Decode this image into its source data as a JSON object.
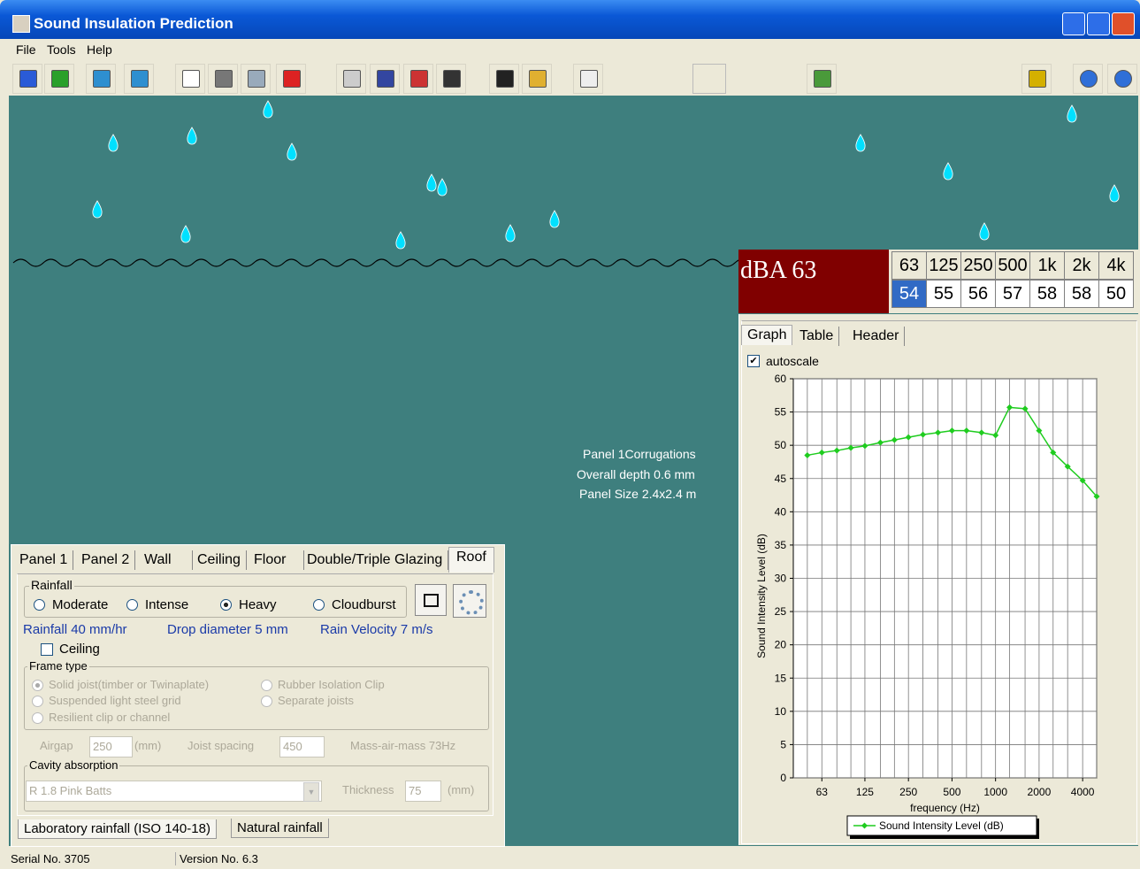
{
  "window": {
    "title": "Sound Insulation Prediction"
  },
  "menu": [
    "File",
    "Tools",
    "Help"
  ],
  "canvas_notes": [
    "Panel 1Corrugations",
    "Overall depth 0.6 mm",
    "Panel Size 2.4x2.4 m"
  ],
  "level_display": {
    "label": "dBA 63",
    "bands": [
      "63",
      "125",
      "250",
      "500",
      "1k",
      "2k",
      "4k"
    ],
    "values": [
      54,
      55,
      56,
      57,
      58,
      58,
      50
    ]
  },
  "result_tabs": [
    "Graph",
    "Table",
    "Header"
  ],
  "autoscale": "autoscale",
  "chart_data": {
    "type": "line",
    "ylabel": "Sound Intensity Level (dB)",
    "xlabel": "frequency (Hz)",
    "x": [
      50,
      63,
      80,
      100,
      125,
      160,
      200,
      250,
      315,
      400,
      500,
      630,
      800,
      1000,
      1250,
      1600,
      2000,
      2500,
      3150,
      4000,
      5000
    ],
    "series": [
      {
        "name": "Sound Intensity Level (dB)",
        "color": "#1fcc1f",
        "values": [
          48.5,
          48.9,
          49.2,
          49.6,
          49.9,
          50.4,
          50.8,
          51.2,
          51.6,
          51.9,
          52.2,
          52.2,
          51.9,
          51.5,
          55.7,
          55.5,
          52.2,
          48.9,
          46.8,
          44.7,
          42.3
        ]
      }
    ],
    "xlim": [
      40,
      5000
    ],
    "ylim": [
      0,
      60
    ],
    "xscale": "log",
    "xticks": [
      63,
      125,
      250,
      500,
      1000,
      2000,
      4000
    ],
    "yticks": [
      0,
      5,
      10,
      15,
      20,
      25,
      30,
      35,
      40,
      45,
      50,
      55,
      60
    ],
    "grid": true
  },
  "input_panel": {
    "tabs": [
      "Panel 1",
      "Panel 2",
      "Wall",
      "Ceiling",
      "Floor",
      "Double/Triple Glazing",
      "Roof"
    ],
    "rainfall": {
      "title": "Rainfall",
      "options": [
        "Moderate",
        "Intense",
        "Heavy",
        "Cloudburst"
      ],
      "info": [
        "Rainfall 40 mm/hr",
        "Drop diameter 5 mm",
        "Rain Velocity 7 m/s"
      ]
    },
    "ceiling": "Ceiling",
    "frame_type": {
      "title": "Frame type",
      "options": [
        "Solid joist(timber or Twinaplate)",
        "Rubber Isolation Clip",
        "Suspended light steel grid",
        "Separate joists",
        "Resilient clip or channel"
      ]
    },
    "airgap": {
      "label": "Airgap",
      "value": "250",
      "unit": "(mm)"
    },
    "joist_spacing": {
      "label": "Joist spacing",
      "value": "450"
    },
    "mass_air_mass": "Mass-air-mass 73Hz",
    "cavity": {
      "title": "Cavity absorption",
      "material": "R 1.8 Pink Batts",
      "thickness_label": "Thickness",
      "thickness": "75",
      "unit": "(mm)"
    },
    "mode_tabs": [
      "Laboratory rainfall (ISO 140-18)",
      "Natural rainfall"
    ]
  },
  "status": [
    "Serial No. 3705",
    "Version No. 6.3"
  ]
}
